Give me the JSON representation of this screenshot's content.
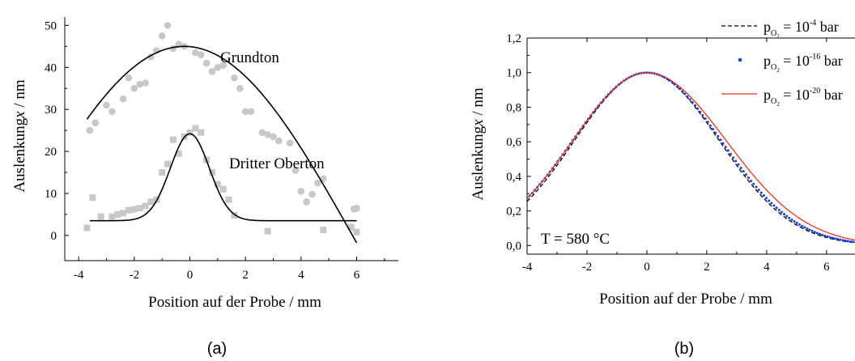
{
  "chart_data": [
    {
      "type": "scatter",
      "panel_label": "(a)",
      "xlabel": "Position auf der Probe  /  mm",
      "ylabel": "Auslenkung",
      "ylabel_symbol": "x",
      "ylabel_unit": "  /  nm",
      "xlim": [
        -4.5,
        7.5
      ],
      "ylim": [
        -6,
        52
      ],
      "x_ticks": [
        -4,
        -2,
        0,
        2,
        4,
        6
      ],
      "y_ticks": [
        0,
        10,
        20,
        30,
        40,
        50
      ],
      "annotations": [
        {
          "text": "Grundton",
          "x": 1.6,
          "y": 44
        },
        {
          "text": "Dritter Oberton",
          "x": 0.95,
          "y": 18
        }
      ],
      "series": [
        {
          "marker": "circle",
          "color": "#c8c8c8",
          "points": [
            [
              -3.6,
              25
            ],
            [
              -3.4,
              26.8
            ],
            [
              -3.0,
              31
            ],
            [
              -2.8,
              29.5
            ],
            [
              -2.4,
              32.5
            ],
            [
              -2.2,
              37.5
            ],
            [
              -2.0,
              35
            ],
            [
              -1.8,
              36
            ],
            [
              -1.6,
              36.3
            ],
            [
              -1.4,
              42.5
            ],
            [
              -1.2,
              44
            ],
            [
              -1.0,
              47.5
            ],
            [
              -0.8,
              50
            ],
            [
              -0.6,
              44.5
            ],
            [
              -0.4,
              45.5
            ],
            [
              -0.2,
              45
            ],
            [
              0.2,
              43.5
            ],
            [
              0.4,
              43
            ],
            [
              0.6,
              41
            ],
            [
              0.8,
              39
            ],
            [
              1.0,
              40
            ],
            [
              1.2,
              40.5
            ],
            [
              1.6,
              37.5
            ],
            [
              1.8,
              35
            ],
            [
              2.0,
              29.5
            ],
            [
              2.2,
              29.5
            ],
            [
              2.6,
              24.5
            ],
            [
              2.8,
              24
            ],
            [
              3.0,
              23.5
            ],
            [
              3.2,
              22.5
            ],
            [
              3.6,
              22
            ],
            [
              3.8,
              15.5
            ],
            [
              4.0,
              10.5
            ],
            [
              4.2,
              8
            ],
            [
              4.4,
              9.8
            ],
            [
              4.6,
              12.5
            ],
            [
              4.8,
              13.5
            ],
            [
              5.9,
              6.3
            ],
            [
              6.0,
              6.5
            ]
          ]
        },
        {
          "marker": "square",
          "color": "#c8c8c8",
          "points": [
            [
              -3.7,
              1.8
            ],
            [
              -3.5,
              9
            ],
            [
              -3.2,
              4.5
            ],
            [
              -2.8,
              4.5
            ],
            [
              -2.6,
              5
            ],
            [
              -2.4,
              5.3
            ],
            [
              -2.2,
              6
            ],
            [
              -2.0,
              6.2
            ],
            [
              -1.8,
              6.5
            ],
            [
              -1.6,
              7
            ],
            [
              -1.4,
              8
            ],
            [
              -1.2,
              8.5
            ],
            [
              -1.0,
              15
            ],
            [
              -0.8,
              17
            ],
            [
              -0.6,
              22.8
            ],
            [
              -0.4,
              19.5
            ],
            [
              -0.2,
              23.5
            ],
            [
              0.0,
              24.5
            ],
            [
              0.2,
              25.5
            ],
            [
              0.4,
              24.5
            ],
            [
              0.6,
              18
            ],
            [
              0.8,
              15
            ],
            [
              1.0,
              12.2
            ],
            [
              1.2,
              11
            ],
            [
              1.4,
              8.5
            ],
            [
              1.6,
              4.8
            ],
            [
              2.8,
              1
            ],
            [
              4.8,
              1.3
            ],
            [
              5.8,
              2
            ],
            [
              6.0,
              0.8
            ]
          ]
        },
        {
          "marker": "line",
          "color": "#000000",
          "model": {
            "kind": "sine",
            "offset": 0,
            "amplitude": 45,
            "center": -0.2,
            "wavelength": 24.2,
            "x_range": [
              -3.7,
              6.0
            ]
          }
        },
        {
          "marker": "line",
          "color": "#000000",
          "model": {
            "kind": "gauss",
            "offset": 3.5,
            "amplitude": 20.7,
            "center": 0.0,
            "sigma": 0.7,
            "x_range": [
              -3.6,
              6.0
            ]
          }
        }
      ]
    },
    {
      "type": "line",
      "panel_label": "(b)",
      "xlabel": "Position auf der Probe  /  mm",
      "ylabel": "Auslenkung",
      "ylabel_symbol": "x",
      "ylabel_unit": "  /  nm",
      "xlim": [
        -4,
        7.2
      ],
      "ylim": [
        -0.05,
        1.2
      ],
      "x_ticks": [
        -4,
        -2,
        0,
        2,
        4,
        6
      ],
      "y_ticks": [
        0.0,
        0.2,
        0.4,
        0.6,
        0.8,
        1.0,
        1.2
      ],
      "y_tick_labels": [
        "0,0",
        "0,2",
        "0,4",
        "0,6",
        "0,8",
        "1,0",
        "1,2"
      ],
      "annotation": "T = 580 °C",
      "legend_position": "top-right",
      "series": [
        {
          "legend": {
            "p": "p",
            "sub": "O",
            "subsub": "2",
            "eq": " = 10",
            "exp": "-4",
            "unit": " bar"
          },
          "style": "dashed",
          "color": "#000000",
          "model": {
            "kind": "gauss",
            "center": 0,
            "sigma_left": 2.42,
            "sigma_right": 2.42
          }
        },
        {
          "legend": {
            "p": "p",
            "sub": "O",
            "subsub": "2",
            "eq": " = 10",
            "exp": "-16",
            "unit": " bar"
          },
          "style": "dotted",
          "color": "#1a3fd6",
          "model": {
            "kind": "gauss",
            "center": 0,
            "sigma_left": 2.48,
            "sigma_right": 2.48
          }
        },
        {
          "legend": {
            "p": "p",
            "sub": "O",
            "subsub": "2",
            "eq": " = 10",
            "exp": "-20",
            "unit": " bar"
          },
          "style": "solid",
          "color": "#e8321e",
          "model": {
            "kind": "gauss",
            "center": 0,
            "sigma_left": 2.48,
            "sigma_right": 2.65
          }
        }
      ]
    }
  ]
}
